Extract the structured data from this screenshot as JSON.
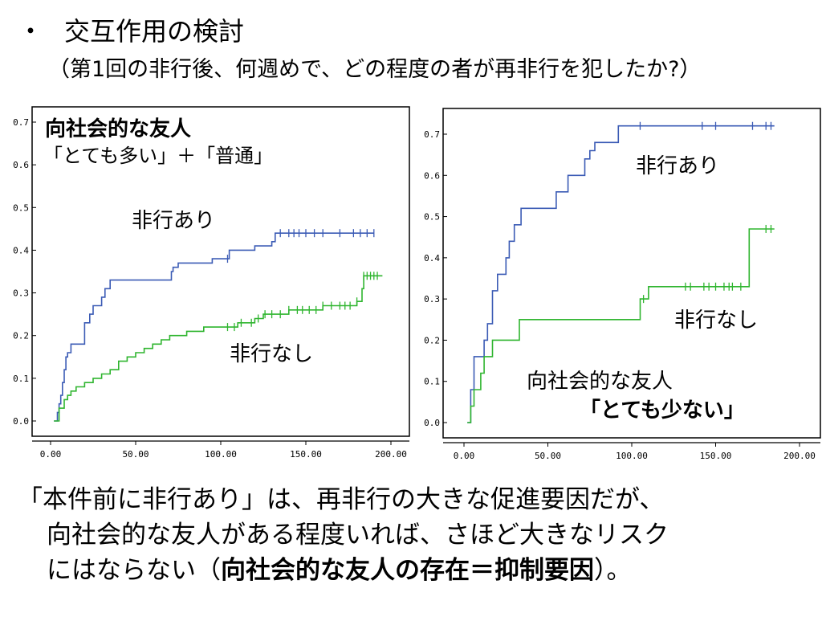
{
  "slide": {
    "bullet": "・",
    "title": "交互作用の検討",
    "subtitle": "（第1回の非行後、何週めで、どの程度の者が再非行を犯したか?）",
    "conclusion": {
      "line1": "「本件前に非行あり」は、再非行の大きな促進要因だが、",
      "line2": "向社会的な友人がある程度いれば、さほど大きなリスク",
      "line3_start": "にはならない（",
      "line3_bold": "向社会的な友人の存在＝抑制要因",
      "line3_end": "）。"
    }
  },
  "colors": {
    "delinquent": "#3b5bb5",
    "non_delinquent": "#2fb52f",
    "axis": "#000000",
    "frame": "#000000"
  },
  "chart_data": [
    {
      "type": "line",
      "subtype": "step (Kaplan-Meier survival, cumulative)",
      "annotation_title": "向社会的な友人",
      "annotation_subtitle": "「とても多い」＋「普通」",
      "xlim": [
        0,
        200
      ],
      "ylim": [
        0,
        0.7
      ],
      "xticks": [
        "0.00",
        "50.00",
        "100.00",
        "150.00",
        "200.00"
      ],
      "yticks": [
        "0.0",
        "0.1",
        "0.2",
        "0.3",
        "0.4",
        "0.5",
        "0.6",
        "0.7"
      ],
      "series": [
        {
          "name": "非行あり",
          "color": "#3b5bb5",
          "x": [
            2,
            4,
            5,
            6,
            7,
            8,
            9,
            10,
            12,
            16,
            20,
            23,
            25,
            30,
            32,
            35,
            71,
            72,
            75,
            95,
            102,
            105,
            110,
            120,
            130,
            132,
            140,
            150,
            165,
            180,
            190
          ],
          "y": [
            0,
            0.02,
            0.04,
            0.06,
            0.09,
            0.12,
            0.15,
            0.16,
            0.18,
            0.18,
            0.23,
            0.25,
            0.27,
            0.29,
            0.31,
            0.33,
            0.35,
            0.36,
            0.37,
            0.38,
            0.38,
            0.4,
            0.4,
            0.41,
            0.42,
            0.44,
            0.44,
            0.44,
            0.44,
            0.44,
            0.44
          ],
          "censor_x": [
            104,
            135,
            140,
            143,
            146,
            150,
            155,
            160,
            170,
            178,
            182,
            186,
            190
          ]
        },
        {
          "name": "非行なし",
          "color": "#2fb52f",
          "x": [
            2,
            5,
            8,
            10,
            12,
            15,
            20,
            25,
            30,
            35,
            40,
            45,
            50,
            55,
            60,
            65,
            70,
            80,
            90,
            100,
            110,
            120,
            125,
            130,
            140,
            150,
            160,
            170,
            180,
            183,
            184,
            195
          ],
          "y": [
            0,
            0.03,
            0.05,
            0.06,
            0.07,
            0.08,
            0.09,
            0.1,
            0.11,
            0.12,
            0.14,
            0.15,
            0.16,
            0.17,
            0.18,
            0.19,
            0.2,
            0.21,
            0.22,
            0.22,
            0.23,
            0.24,
            0.25,
            0.25,
            0.26,
            0.26,
            0.27,
            0.27,
            0.28,
            0.31,
            0.34,
            0.34
          ],
          "censor_x": [
            104,
            108,
            112,
            118,
            122,
            126,
            130,
            135,
            140,
            145,
            148,
            152,
            156,
            160,
            165,
            170,
            173,
            176,
            180,
            184,
            186,
            188,
            190,
            192
          ]
        }
      ]
    },
    {
      "type": "line",
      "subtype": "step (Kaplan-Meier survival, cumulative)",
      "annotation_title": "向社会的な友人",
      "annotation_subtitle": "「とても少ない」",
      "xlim": [
        0,
        200
      ],
      "ylim": [
        0,
        0.7
      ],
      "xticks": [
        "0.00",
        "50.00",
        "100.00",
        "150.00",
        "200.00"
      ],
      "yticks": [
        "0.0",
        "0.1",
        "0.2",
        "0.3",
        "0.4",
        "0.5",
        "0.6",
        "0.7"
      ],
      "series": [
        {
          "name": "非行あり",
          "color": "#3b5bb5",
          "x": [
            2,
            4,
            6,
            9,
            12,
            14,
            17,
            20,
            22,
            25,
            27,
            30,
            34,
            40,
            55,
            62,
            72,
            75,
            78,
            80,
            92,
            185
          ],
          "y": [
            0,
            0.08,
            0.16,
            0.16,
            0.2,
            0.24,
            0.32,
            0.36,
            0.36,
            0.4,
            0.44,
            0.48,
            0.52,
            0.52,
            0.56,
            0.6,
            0.64,
            0.66,
            0.68,
            0.68,
            0.72,
            0.72
          ],
          "censor_x": [
            105,
            142,
            150,
            172,
            180,
            183
          ]
        },
        {
          "name": "非行なし",
          "color": "#2fb52f",
          "x": [
            2,
            4,
            6,
            10,
            12,
            17,
            33,
            45,
            105,
            110,
            170,
            185
          ],
          "y": [
            0,
            0.04,
            0.08,
            0.12,
            0.16,
            0.2,
            0.25,
            0.25,
            0.3,
            0.33,
            0.47,
            0.47
          ],
          "censor_x": [
            107,
            132,
            135,
            143,
            146,
            150,
            155,
            158,
            160,
            165,
            180,
            183
          ]
        }
      ]
    }
  ]
}
